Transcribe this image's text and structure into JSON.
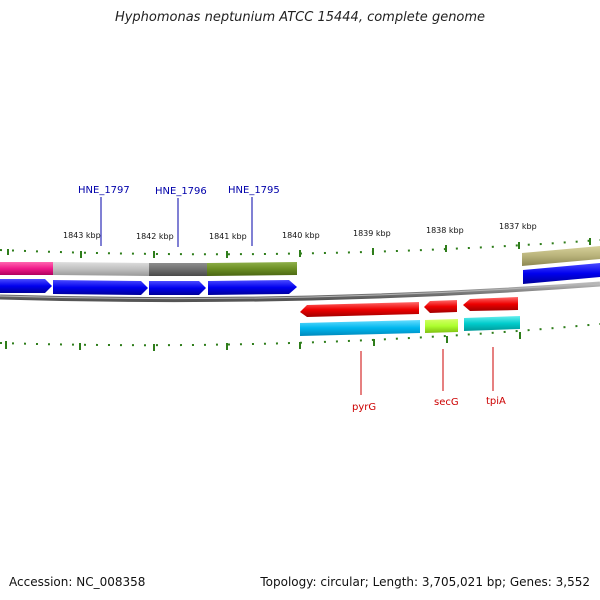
{
  "title": "Hyphomonas neptunium ATCC 15444, complete genome",
  "footer": {
    "accession": "Accession: NC_008358",
    "summary": "Topology: circular; Length: 3,705,021 bp; Genes: 3,552"
  },
  "ticks": [
    {
      "label": "1843 kbp"
    },
    {
      "label": "1842 kbp"
    },
    {
      "label": "1841 kbp"
    },
    {
      "label": "1840 kbp"
    },
    {
      "label": "1839 kbp"
    },
    {
      "label": "1838 kbp"
    },
    {
      "label": "1837 kbp"
    }
  ],
  "genes_top": [
    {
      "label": "HNE_1797"
    },
    {
      "label": "HNE_1796"
    },
    {
      "label": "HNE_1795"
    }
  ],
  "genes_bottom": [
    {
      "label": "pyrG"
    },
    {
      "label": "secG"
    },
    {
      "label": "tpiA"
    }
  ],
  "colors": {
    "backbone": "#808080",
    "tick": "#2e7d1a",
    "cds": "#0000ee",
    "rna_red": "#ee0000",
    "cyan": "#00b7ee",
    "top_label": "#0000aa",
    "bottom_label": "#cc0000"
  }
}
